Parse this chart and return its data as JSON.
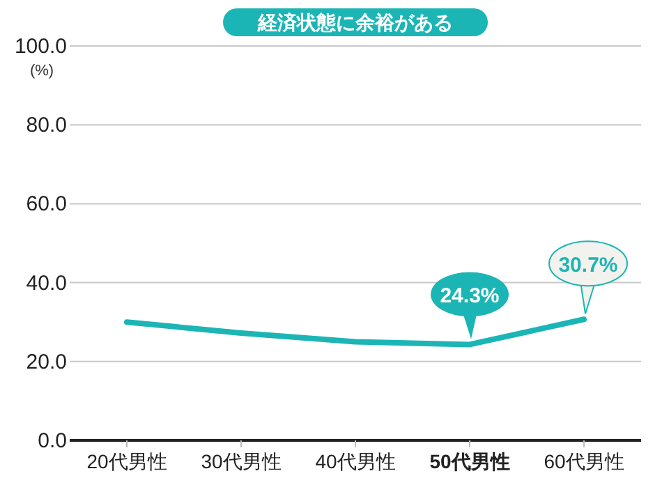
{
  "chart_data": {
    "type": "line",
    "title": "経済状態に余裕がある",
    "ylabel": "(%)",
    "categories": [
      "20代男性",
      "30代男性",
      "40代男性",
      "50代男性",
      "60代男性"
    ],
    "series": [
      {
        "color": "#1cb5b5",
        "values": [
          30.0,
          27.2,
          25.0,
          24.3,
          30.7
        ],
        "value_labels": [
          null,
          null,
          null,
          "24.3%",
          "30.7%"
        ]
      }
    ],
    "ylim": [
      0,
      100
    ],
    "yticks": [
      {
        "value": 0,
        "label": "0.0"
      },
      {
        "value": 20,
        "label": "20.0"
      },
      {
        "value": 40,
        "label": "40.0"
      },
      {
        "value": 60,
        "label": "60.0"
      },
      {
        "value": 80,
        "label": "80.0"
      },
      {
        "value": 100,
        "label": "100.0"
      }
    ],
    "grid": "y",
    "marker": "none",
    "line_style": "solid"
  }
}
